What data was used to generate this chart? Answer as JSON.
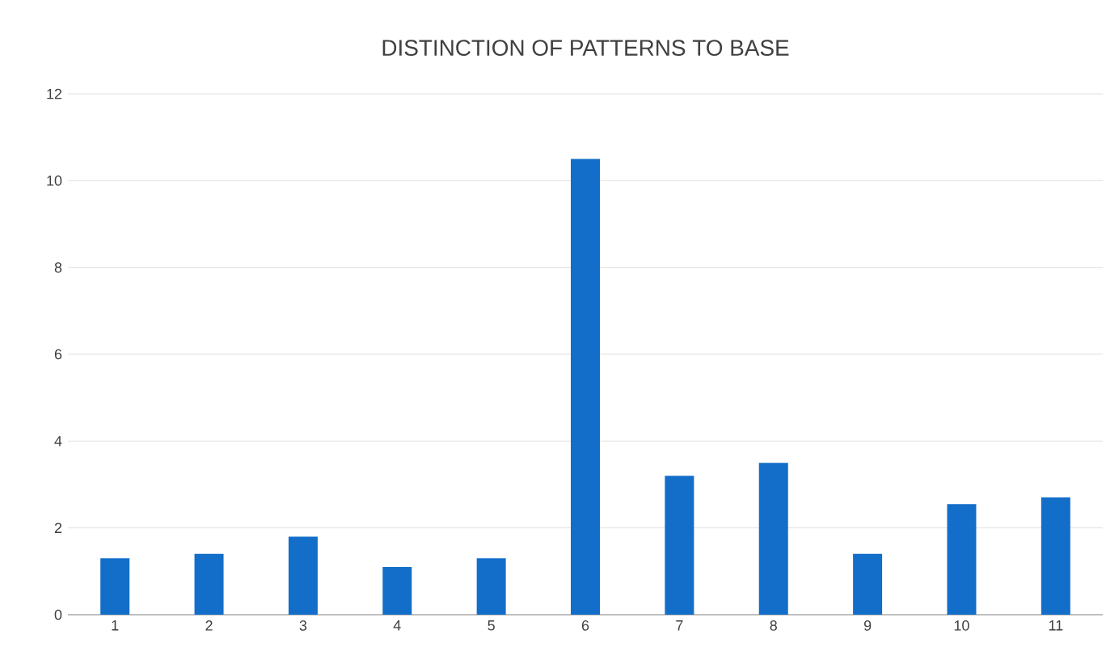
{
  "chart_data": {
    "type": "bar",
    "title": "DISTINCTION OF PATTERNS TO BASE",
    "categories": [
      "1",
      "2",
      "3",
      "4",
      "5",
      "6",
      "7",
      "8",
      "9",
      "10",
      "11"
    ],
    "values": [
      1.3,
      1.4,
      1.8,
      1.1,
      1.3,
      10.5,
      3.2,
      3.5,
      1.4,
      2.55,
      2.7
    ],
    "color": "#136ec9",
    "ylim": [
      0,
      12
    ],
    "yticks": [
      0,
      2,
      4,
      6,
      8,
      10,
      12
    ],
    "grid": "y"
  }
}
